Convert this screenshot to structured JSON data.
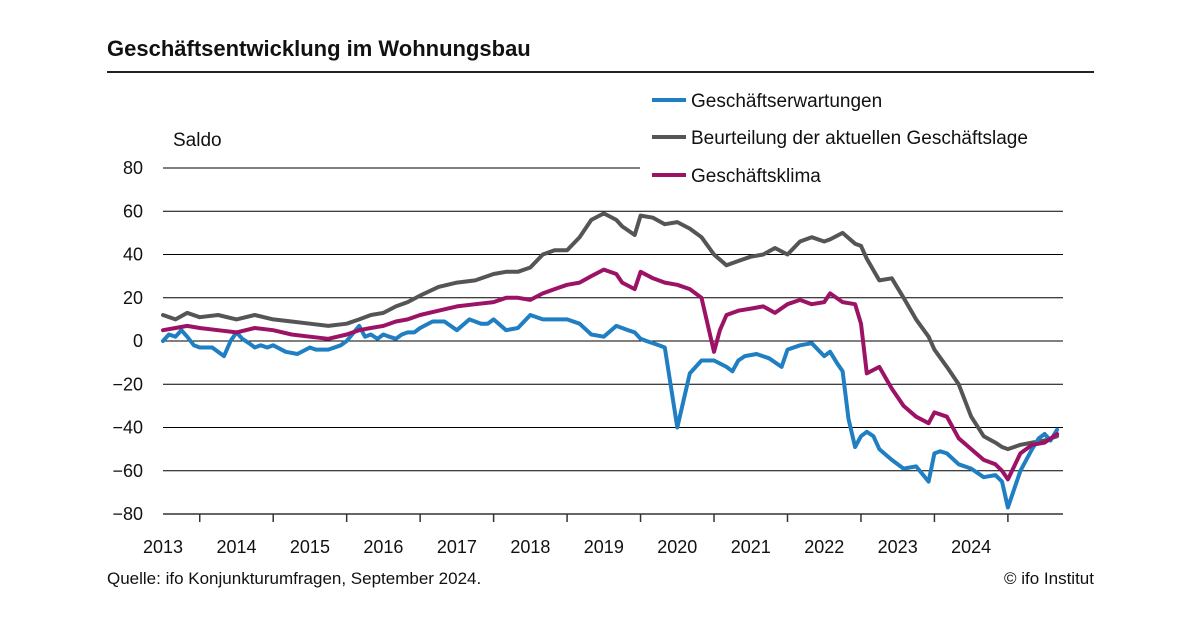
{
  "title": "Geschäftsentwicklung im Wohnungsbau",
  "source": "Quelle: ifo Konjunkturumfragen, September 2024.",
  "copyright": "© ifo Institut",
  "colors": {
    "Geschäftserwartungen": "#1f7fc2",
    "Beurteilung der aktuellen Geschäftslage": "#555555",
    "Geschäftsklima": "#9c1366",
    "grid": "#000000",
    "axis": "#333333"
  },
  "chart_data": {
    "type": "line",
    "ylabel": "Saldo",
    "ylim": [
      -80,
      80
    ],
    "yticks": [
      80,
      60,
      40,
      20,
      0,
      -20,
      -40,
      -60,
      -80
    ],
    "xlim": [
      2012.5,
      2024.75
    ],
    "xtick_labels": [
      "2013",
      "2014",
      "2015",
      "2016",
      "2017",
      "2018",
      "2019",
      "2020",
      "2021",
      "2022",
      "2023",
      "2024"
    ],
    "grid": true,
    "legend_position": "top-right",
    "series": [
      {
        "name": "Geschäftserwartungen",
        "x": [
          2012.5,
          2012.58,
          2012.67,
          2012.75,
          2012.83,
          2012.92,
          2013.0,
          2013.17,
          2013.33,
          2013.42,
          2013.5,
          2013.58,
          2013.67,
          2013.75,
          2013.83,
          2013.92,
          2014.0,
          2014.17,
          2014.33,
          2014.5,
          2014.58,
          2014.75,
          2014.92,
          2015.0,
          2015.17,
          2015.25,
          2015.33,
          2015.42,
          2015.5,
          2015.58,
          2015.67,
          2015.75,
          2015.83,
          2015.92,
          2016.0,
          2016.17,
          2016.33,
          2016.5,
          2016.67,
          2016.83,
          2016.92,
          2017.0,
          2017.17,
          2017.33,
          2017.5,
          2017.67,
          2017.83,
          2018.0,
          2018.17,
          2018.33,
          2018.5,
          2018.67,
          2018.75,
          2018.83,
          2018.92,
          2019.0,
          2019.08,
          2019.17,
          2019.25,
          2019.33,
          2019.5,
          2019.67,
          2019.83,
          2020.0,
          2020.17,
          2020.25,
          2020.33,
          2020.42,
          2020.58,
          2020.75,
          2020.92,
          2021.0,
          2021.17,
          2021.33,
          2021.5,
          2021.58,
          2021.67,
          2021.75,
          2021.83,
          2021.92,
          2022.0,
          2022.08,
          2022.17,
          2022.25,
          2022.42,
          2022.58,
          2022.75,
          2022.92,
          2023.0,
          2023.08,
          2023.17,
          2023.33,
          2023.5,
          2023.67,
          2023.83,
          2023.92,
          2024.0,
          2024.17,
          2024.33,
          2024.42,
          2024.5,
          2024.58,
          2024.67
        ],
        "values": [
          0,
          3,
          2,
          5,
          2,
          -2,
          -3,
          -3,
          -7,
          0,
          4,
          1,
          -1,
          -3,
          -2,
          -3,
          -2,
          -5,
          -6,
          -3,
          -4,
          -4,
          -2,
          0,
          7,
          2,
          3,
          1,
          3,
          2,
          1,
          3,
          4,
          4,
          6,
          9,
          9,
          5,
          10,
          8,
          8,
          10,
          5,
          6,
          12,
          10,
          10,
          10,
          8,
          3,
          2,
          7,
          6,
          5,
          4,
          1,
          0,
          -1,
          -2,
          -3,
          -40,
          -15,
          -9,
          -9,
          -12,
          -14,
          -9,
          -7,
          -6,
          -8,
          -12,
          -4,
          -2,
          -1,
          -7,
          -5,
          -10,
          -14,
          -36,
          -49,
          -44,
          -42,
          -44,
          -50,
          -55,
          -59,
          -58,
          -65,
          -52,
          -51,
          -52,
          -57,
          -59,
          -63,
          -62,
          -65,
          -77,
          -60,
          -50,
          -45,
          -43,
          -46,
          -41
        ]
      },
      {
        "name": "Beurteilung der aktuellen Geschäftslage",
        "x": [
          2012.5,
          2012.67,
          2012.83,
          2013.0,
          2013.25,
          2013.5,
          2013.75,
          2014.0,
          2014.25,
          2014.5,
          2014.75,
          2015.0,
          2015.17,
          2015.33,
          2015.5,
          2015.67,
          2015.83,
          2016.0,
          2016.25,
          2016.5,
          2016.75,
          2017.0,
          2017.17,
          2017.33,
          2017.5,
          2017.67,
          2017.83,
          2018.0,
          2018.17,
          2018.33,
          2018.5,
          2018.67,
          2018.75,
          2018.92,
          2019.0,
          2019.17,
          2019.33,
          2019.5,
          2019.67,
          2019.83,
          2020.0,
          2020.17,
          2020.33,
          2020.5,
          2020.67,
          2020.83,
          2021.0,
          2021.17,
          2021.33,
          2021.5,
          2021.58,
          2021.75,
          2021.92,
          2022.0,
          2022.08,
          2022.25,
          2022.42,
          2022.58,
          2022.75,
          2022.92,
          2023.0,
          2023.17,
          2023.33,
          2023.5,
          2023.67,
          2023.83,
          2023.92,
          2024.0,
          2024.17,
          2024.33,
          2024.5,
          2024.67
        ],
        "values": [
          12,
          10,
          13,
          11,
          12,
          10,
          12,
          10,
          9,
          8,
          7,
          8,
          10,
          12,
          13,
          16,
          18,
          21,
          25,
          27,
          28,
          31,
          32,
          32,
          34,
          40,
          42,
          42,
          48,
          56,
          59,
          56,
          53,
          49,
          58,
          57,
          54,
          55,
          52,
          48,
          40,
          35,
          37,
          39,
          40,
          43,
          40,
          46,
          48,
          46,
          47,
          50,
          45,
          44,
          38,
          28,
          29,
          20,
          10,
          2,
          -4,
          -12,
          -20,
          -35,
          -44,
          -47,
          -49,
          -50,
          -48,
          -47,
          -46,
          -44
        ]
      },
      {
        "name": "Geschäftsklima",
        "x": [
          2012.5,
          2012.67,
          2012.83,
          2013.0,
          2013.25,
          2013.5,
          2013.75,
          2014.0,
          2014.25,
          2014.5,
          2014.75,
          2015.0,
          2015.17,
          2015.33,
          2015.5,
          2015.67,
          2015.83,
          2016.0,
          2016.25,
          2016.5,
          2016.75,
          2017.0,
          2017.17,
          2017.33,
          2017.5,
          2017.67,
          2017.83,
          2018.0,
          2018.17,
          2018.33,
          2018.5,
          2018.67,
          2018.75,
          2018.92,
          2019.0,
          2019.17,
          2019.33,
          2019.5,
          2019.67,
          2019.83,
          2020.0,
          2020.08,
          2020.17,
          2020.33,
          2020.5,
          2020.67,
          2020.83,
          2021.0,
          2021.17,
          2021.33,
          2021.5,
          2021.58,
          2021.75,
          2021.92,
          2022.0,
          2022.08,
          2022.25,
          2022.42,
          2022.58,
          2022.75,
          2022.92,
          2023.0,
          2023.17,
          2023.33,
          2023.5,
          2023.67,
          2023.83,
          2023.92,
          2024.0,
          2024.17,
          2024.33,
          2024.5,
          2024.67
        ],
        "values": [
          5,
          6,
          7,
          6,
          5,
          4,
          6,
          5,
          3,
          2,
          1,
          3,
          5,
          6,
          7,
          9,
          10,
          12,
          14,
          16,
          17,
          18,
          20,
          20,
          19,
          22,
          24,
          26,
          27,
          30,
          33,
          31,
          27,
          24,
          32,
          29,
          27,
          26,
          24,
          20,
          -5,
          5,
          12,
          14,
          15,
          16,
          13,
          17,
          19,
          17,
          18,
          22,
          18,
          17,
          8,
          -15,
          -12,
          -22,
          -30,
          -35,
          -38,
          -33,
          -35,
          -45,
          -50,
          -55,
          -57,
          -60,
          -64,
          -52,
          -48,
          -47,
          -43
        ]
      }
    ]
  }
}
